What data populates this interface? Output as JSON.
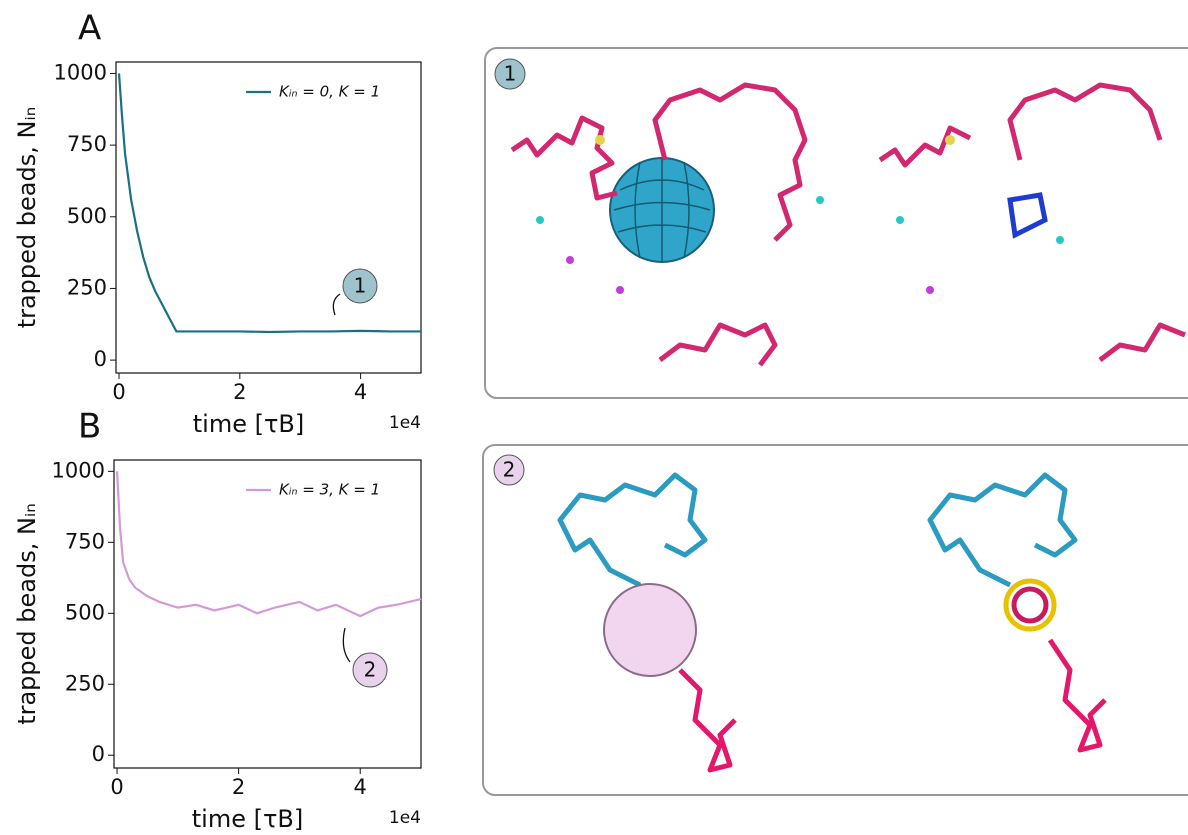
{
  "chart_data": [
    {
      "type": "line",
      "panel": "A",
      "xlabel": "time [τB]",
      "ylabel": "trapped beads, Nᵢₙ",
      "offset_text": "1e4",
      "xlim": [
        -0.05,
        5.0
      ],
      "ylim": [
        -45,
        1040
      ],
      "xticks": [
        0,
        2,
        4
      ],
      "yticks": [
        0,
        250,
        500,
        750,
        1000
      ],
      "annotation": "1",
      "x": [
        0,
        0.05,
        0.1,
        0.2,
        0.3,
        0.4,
        0.5,
        0.6,
        0.7,
        0.8,
        0.9,
        0.95,
        1.2,
        1.5,
        2,
        2.5,
        3,
        3.5,
        4,
        4.5,
        5
      ],
      "series": [
        {
          "name": "Kᵢₙ = 0, K = 1",
          "color": "#1b6f86",
          "values": [
            1000,
            850,
            720,
            560,
            450,
            360,
            290,
            240,
            200,
            160,
            120,
            100,
            100,
            100,
            100,
            98,
            100,
            100,
            102,
            100,
            100
          ]
        }
      ]
    },
    {
      "type": "line",
      "panel": "B",
      "xlabel": "time [τB]",
      "ylabel": "trapped beads, Nᵢₙ",
      "offset_text": "1e4",
      "xlim": [
        -0.05,
        5.0
      ],
      "ylim": [
        -45,
        1040
      ],
      "xticks": [
        0,
        2,
        4
      ],
      "yticks": [
        0,
        250,
        500,
        750,
        1000
      ],
      "annotation": "2",
      "x": [
        0,
        0.05,
        0.1,
        0.2,
        0.3,
        0.5,
        0.7,
        1,
        1.3,
        1.6,
        2,
        2.3,
        2.6,
        3,
        3.3,
        3.6,
        4,
        4.3,
        4.6,
        5
      ],
      "series": [
        {
          "name": "Kᵢₙ = 3, K = 1",
          "color": "#d49ad6",
          "values": [
            1000,
            800,
            680,
            620,
            590,
            560,
            540,
            520,
            530,
            510,
            530,
            500,
            520,
            540,
            510,
            530,
            490,
            520,
            530,
            550
          ]
        }
      ]
    }
  ]
}
